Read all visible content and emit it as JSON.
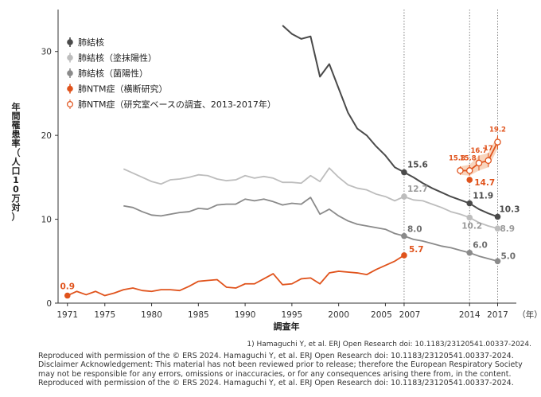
{
  "chart_data": {
    "type": "line",
    "ylabel": "年間罹患率（人口10万対）",
    "xlabel": "調査年",
    "x_unit": "（年）",
    "ylim": [
      0,
      35
    ],
    "xlim": [
      1970,
      2019
    ],
    "y_ticks": [
      0,
      10,
      20,
      30
    ],
    "x_ticks": [
      {
        "v": 1971,
        "label": "1971"
      },
      {
        "v": 1975,
        "label": "1975"
      },
      {
        "v": 1980,
        "label": "1980"
      },
      {
        "v": 1985,
        "label": "1985"
      },
      {
        "v": 1990,
        "label": "1990"
      },
      {
        "v": 1995,
        "label": "1995"
      },
      {
        "v": 2000,
        "label": "2000"
      },
      {
        "v": 2005,
        "label": "2005"
      },
      {
        "v": 2007,
        "label": "2007"
      },
      {
        "v": 2014,
        "label": "2014"
      },
      {
        "v": 2017,
        "label": "2017"
      }
    ],
    "vlines": [
      2007,
      2014,
      2017
    ],
    "series": [
      {
        "name": "肺結核",
        "color": "#4a4a4a",
        "marker": "filled",
        "x": [
          1994,
          1995,
          1996,
          1997,
          1998,
          1999,
          2000,
          2001,
          2002,
          2003,
          2004,
          2005,
          2006,
          2007,
          2008,
          2009,
          2010,
          2011,
          2012,
          2013,
          2014,
          2015,
          2016,
          2017
        ],
        "y": [
          33.1,
          32.1,
          31.5,
          31.8,
          27.0,
          28.5,
          25.6,
          22.7,
          20.8,
          20.0,
          18.7,
          17.6,
          16.2,
          15.6,
          15.0,
          14.3,
          13.7,
          13.2,
          12.7,
          12.3,
          11.9,
          11.2,
          10.7,
          10.3
        ],
        "labels": [
          {
            "x": 2007,
            "text": "15.6"
          },
          {
            "x": 2014,
            "text": "11.9"
          },
          {
            "x": 2017,
            "text": "10.3"
          }
        ]
      },
      {
        "name": "肺結核（塗抹陽性）",
        "color": "#bdbdbd",
        "marker": "filled",
        "x": [
          1977,
          1978,
          1979,
          1980,
          1981,
          1982,
          1983,
          1984,
          1985,
          1986,
          1987,
          1988,
          1989,
          1990,
          1991,
          1992,
          1993,
          1994,
          1995,
          1996,
          1997,
          1998,
          1999,
          2000,
          2001,
          2002,
          2003,
          2004,
          2005,
          2006,
          2007,
          2008,
          2009,
          2010,
          2011,
          2012,
          2013,
          2014,
          2015,
          2016,
          2017
        ],
        "y": [
          16.0,
          15.5,
          15.0,
          14.5,
          14.2,
          14.7,
          14.8,
          15.0,
          15.3,
          15.2,
          14.8,
          14.6,
          14.7,
          15.2,
          14.9,
          15.1,
          14.9,
          14.4,
          14.4,
          14.3,
          15.2,
          14.5,
          16.1,
          15.0,
          14.1,
          13.7,
          13.5,
          13.0,
          12.7,
          12.2,
          12.7,
          12.3,
          12.2,
          11.8,
          11.4,
          10.9,
          10.6,
          10.2,
          9.6,
          9.2,
          8.9
        ],
        "labels": [
          {
            "x": 2007,
            "text": "12.7"
          },
          {
            "x": 2014,
            "text": "10.2"
          },
          {
            "x": 2017,
            "text": "8.9"
          }
        ]
      },
      {
        "name": "肺結核（菌陽性）",
        "color": "#8a8a8a",
        "marker": "filled",
        "x": [
          1977,
          1978,
          1979,
          1980,
          1981,
          1982,
          1983,
          1984,
          1985,
          1986,
          1987,
          1988,
          1989,
          1990,
          1991,
          1992,
          1993,
          1994,
          1995,
          1996,
          1997,
          1998,
          1999,
          2000,
          2001,
          2002,
          2003,
          2004,
          2005,
          2006,
          2007,
          2008,
          2009,
          2010,
          2011,
          2012,
          2013,
          2014,
          2015,
          2016,
          2017
        ],
        "y": [
          11.6,
          11.4,
          10.9,
          10.5,
          10.4,
          10.6,
          10.8,
          10.9,
          11.3,
          11.2,
          11.7,
          11.8,
          11.8,
          12.4,
          12.2,
          12.4,
          12.1,
          11.7,
          11.9,
          11.8,
          12.6,
          10.6,
          11.2,
          10.4,
          9.8,
          9.4,
          9.2,
          9.0,
          8.8,
          8.3,
          8.0,
          7.6,
          7.4,
          7.1,
          6.8,
          6.6,
          6.3,
          6.0,
          5.6,
          5.3,
          5.0
        ],
        "labels": [
          {
            "x": 2007,
            "text": "8.0"
          },
          {
            "x": 2014,
            "text": "6.0"
          },
          {
            "x": 2017,
            "text": "5.0"
          }
        ]
      },
      {
        "name": "肺NTM症（横断研究）",
        "color": "#e0531c",
        "marker": "filled",
        "x": [
          1971,
          1972,
          1973,
          1974,
          1975,
          1976,
          1977,
          1978,
          1979,
          1980,
          1981,
          1982,
          1983,
          1984,
          1985,
          1986,
          1987,
          1988,
          1989,
          1990,
          1991,
          1992,
          1993,
          1994,
          1995,
          1996,
          1997,
          1998,
          1999,
          2000,
          2001,
          2002,
          2003,
          2004,
          2005,
          2006,
          2007,
          2014
        ],
        "y": [
          0.9,
          1.4,
          1.0,
          1.4,
          0.9,
          1.2,
          1.6,
          1.8,
          1.5,
          1.4,
          1.6,
          1.6,
          1.5,
          2.0,
          2.6,
          2.7,
          2.8,
          1.9,
          1.8,
          2.3,
          2.3,
          2.9,
          3.5,
          2.2,
          2.3,
          2.9,
          3.0,
          2.3,
          3.6,
          3.8,
          3.7,
          3.6,
          3.4,
          4.0,
          4.5,
          5.0,
          5.7,
          14.7
        ],
        "labels": [
          {
            "x": 1971,
            "text": "0.9"
          },
          {
            "x": 2007,
            "text": "5.7"
          },
          {
            "x": 2014,
            "text": "14.7"
          }
        ]
      },
      {
        "name": "肺NTM症（研究室ベースの調査、2013-2017年）",
        "color": "#e0531c",
        "marker": "open",
        "x": [
          2013,
          2014,
          2015,
          2016,
          2017
        ],
        "y": [
          15.8,
          15.8,
          16.7,
          17.0,
          19.2
        ],
        "err_low": [
          15.3,
          15.2,
          15.8,
          16.2,
          18.4
        ],
        "err_high": [
          16.3,
          16.5,
          17.6,
          17.9,
          20.0
        ],
        "labels": [
          {
            "x": 2013,
            "text": "15.8"
          },
          {
            "x": 2014,
            "text": "15.8"
          },
          {
            "x": 2015,
            "text": "16.7"
          },
          {
            "x": 2016,
            "text": "17"
          },
          {
            "x": 2017,
            "text": "19.2"
          }
        ]
      }
    ]
  },
  "reference": "1) Hamaguchi Y, et al. ERJ Open Research doi: 10.1183/23120541.00337-2024.",
  "footer": {
    "line1": "Reproduced with permission of the © ERS 2024. Hamaguchi Y, et al. ERJ Open Research doi: 10.1183/23120541.00337-2024.",
    "line2": "Disclaimer Acknowledgement: This material has not been reviewed prior to release; therefore the European Respiratory Society may not be responsible for any errors, omissions or inaccuracies, or for any consequences arising there from, in the content. Reproduced with permission of the © ERS 2024. Hamaguchi Y, et al. ERJ Open Research doi: 10.1183/23120541.00337-2024."
  }
}
